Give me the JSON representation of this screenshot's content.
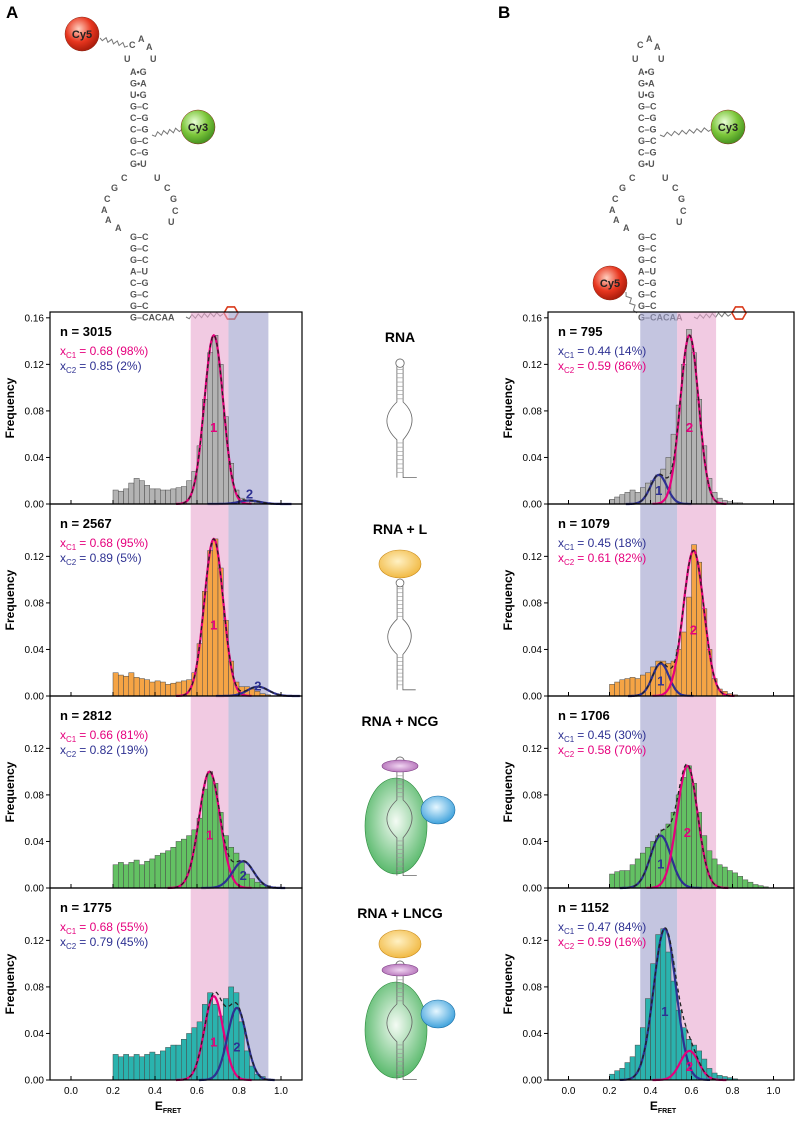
{
  "panel_letters": [
    "A",
    "B"
  ],
  "rna": {
    "dyes": [
      "Cy5",
      "Cy3"
    ],
    "loop": [
      "U",
      "C",
      "A",
      "A",
      "U"
    ],
    "upper_stem": [
      "A•G",
      "G•A",
      "U•G",
      "G–C",
      "C–G",
      "C–G",
      "G–C",
      "C–G",
      "G•U"
    ],
    "internal_left": [
      "C",
      "G",
      "C",
      "A",
      "A",
      "A"
    ],
    "internal_right": [
      "U",
      "C",
      "G",
      "C",
      "U"
    ],
    "lower_stem": [
      "G–C",
      "G–C",
      "G–C",
      "A–U",
      "C–G",
      "G–C",
      "G–C",
      "G–CACAA"
    ]
  },
  "conditions": [
    "RNA",
    "RNA + L",
    "RNA + NCG",
    "RNA + LNCG"
  ],
  "chart_data": [
    {
      "type": "histogram",
      "label": "n = 3015",
      "y_label": "Frequency",
      "color": "#b3b3b3",
      "bins": [
        0.2,
        0.225,
        0.25,
        0.275,
        0.3,
        0.325,
        0.35,
        0.375,
        0.4,
        0.425,
        0.45,
        0.475,
        0.5,
        0.525,
        0.55,
        0.575,
        0.6,
        0.625,
        0.65,
        0.675,
        0.7,
        0.725,
        0.75,
        0.775,
        0.8,
        0.825,
        0.85,
        0.875,
        0.9,
        0.925,
        0.95,
        0.975,
        1.0
      ],
      "values": [
        0.012,
        0.011,
        0.013,
        0.018,
        0.022,
        0.02,
        0.016,
        0.013,
        0.013,
        0.012,
        0.012,
        0.013,
        0.014,
        0.015,
        0.02,
        0.028,
        0.05,
        0.09,
        0.13,
        0.145,
        0.12,
        0.075,
        0.035,
        0.012,
        0.005,
        0.003,
        0.002,
        0.001,
        0.001,
        0,
        0,
        0
      ],
      "xlim": [
        -0.1,
        1.1
      ],
      "ylim": [
        0,
        0.165
      ],
      "yticks": [
        {
          "value": 0,
          "label": "0.00"
        },
        0.04,
        0.08,
        0.12,
        0.16
      ],
      "bands": [
        {
          "range": [
            0.57,
            0.75
          ],
          "color": "#e8a7cf"
        },
        {
          "range": [
            0.75,
            0.94
          ],
          "color": "#9d9ecb"
        }
      ],
      "fit_symbol": "x",
      "fits": [
        {
          "name": "C1",
          "label": "= 0.68 (98%)",
          "center": 0.68,
          "sigma": 0.045,
          "amplitude": 0.145,
          "color": "#e5007d",
          "peak_label": "1"
        },
        {
          "name": "C2",
          "label": "= 0.85  (2%)",
          "center": 0.85,
          "sigma": 0.05,
          "amplitude": 0.003,
          "color": "#2e3192",
          "peak_label": "2"
        }
      ]
    },
    {
      "type": "histogram",
      "label": "n = 2567",
      "y_label": "Frequency",
      "color": "#f5a445",
      "bins": [
        0.2,
        0.225,
        0.25,
        0.275,
        0.3,
        0.325,
        0.35,
        0.375,
        0.4,
        0.425,
        0.45,
        0.475,
        0.5,
        0.525,
        0.55,
        0.575,
        0.6,
        0.625,
        0.65,
        0.675,
        0.7,
        0.725,
        0.75,
        0.775,
        0.8,
        0.825,
        0.85,
        0.875,
        0.9,
        0.925,
        0.95,
        0.975,
        1.0
      ],
      "values": [
        0.02,
        0.018,
        0.017,
        0.02,
        0.016,
        0.015,
        0.014,
        0.012,
        0.013,
        0.012,
        0.01,
        0.011,
        0.012,
        0.013,
        0.014,
        0.02,
        0.045,
        0.09,
        0.125,
        0.135,
        0.11,
        0.065,
        0.03,
        0.012,
        0.008,
        0.008,
        0.006,
        0.004,
        0.002,
        0.001,
        0,
        0
      ],
      "xlim": [
        -0.1,
        1.1
      ],
      "ylim": [
        0,
        0.165
      ],
      "yticks": [
        {
          "value": 0,
          "label": "0.00"
        },
        0.04,
        0.08,
        0.12
      ],
      "bands": [
        {
          "range": [
            0.57,
            0.75
          ],
          "color": "#e8a7cf"
        },
        {
          "range": [
            0.75,
            0.94
          ],
          "color": "#9d9ecb"
        }
      ],
      "fit_symbol": "x",
      "fits": [
        {
          "name": "C1",
          "label": "= 0.68 (95%)",
          "center": 0.68,
          "sigma": 0.045,
          "amplitude": 0.135,
          "color": "#e5007d",
          "peak_label": "1"
        },
        {
          "name": "C2",
          "label": "= 0.89  (5%)",
          "center": 0.89,
          "sigma": 0.05,
          "amplitude": 0.008,
          "color": "#2e3192",
          "peak_label": "2"
        }
      ]
    },
    {
      "type": "histogram",
      "label": "n = 2812",
      "y_label": "Frequency",
      "color": "#63c163",
      "bins": [
        0.2,
        0.225,
        0.25,
        0.275,
        0.3,
        0.325,
        0.35,
        0.375,
        0.4,
        0.425,
        0.45,
        0.475,
        0.5,
        0.525,
        0.55,
        0.575,
        0.6,
        0.625,
        0.65,
        0.675,
        0.7,
        0.725,
        0.75,
        0.775,
        0.8,
        0.825,
        0.85,
        0.875,
        0.9,
        0.925,
        0.95,
        0.975,
        1.0
      ],
      "values": [
        0.02,
        0.022,
        0.02,
        0.022,
        0.024,
        0.02,
        0.023,
        0.025,
        0.028,
        0.03,
        0.032,
        0.035,
        0.04,
        0.042,
        0.045,
        0.05,
        0.06,
        0.085,
        0.1,
        0.09,
        0.065,
        0.045,
        0.035,
        0.03,
        0.022,
        0.012,
        0.008,
        0.005,
        0.003,
        0.002,
        0.001,
        0
      ],
      "xlim": [
        -0.1,
        1.1
      ],
      "ylim": [
        0,
        0.165
      ],
      "yticks": [
        {
          "value": 0,
          "label": "0.00"
        },
        0.04,
        0.08,
        0.12
      ],
      "bands": [
        {
          "range": [
            0.57,
            0.75
          ],
          "color": "#e8a7cf"
        },
        {
          "range": [
            0.75,
            0.94
          ],
          "color": "#9d9ecb"
        }
      ],
      "fit_symbol": "x",
      "fits": [
        {
          "name": "C1",
          "label": "= 0.66 (81%)",
          "center": 0.66,
          "sigma": 0.05,
          "amplitude": 0.1,
          "color": "#e5007d",
          "peak_label": "1"
        },
        {
          "name": "C2",
          "label": "= 0.82 (19%)",
          "center": 0.82,
          "sigma": 0.05,
          "amplitude": 0.023,
          "color": "#2e3192",
          "peak_label": "2"
        }
      ]
    },
    {
      "type": "histogram",
      "label": "n = 1775",
      "y_label": "Frequency",
      "color": "#2ab3ae",
      "bins": [
        0.2,
        0.225,
        0.25,
        0.275,
        0.3,
        0.325,
        0.35,
        0.375,
        0.4,
        0.425,
        0.45,
        0.475,
        0.5,
        0.525,
        0.55,
        0.575,
        0.6,
        0.625,
        0.65,
        0.675,
        0.7,
        0.725,
        0.75,
        0.775,
        0.8,
        0.825,
        0.85,
        0.875,
        0.9,
        0.925,
        0.95,
        0.975,
        1.0
      ],
      "values": [
        0.022,
        0.02,
        0.022,
        0.02,
        0.022,
        0.02,
        0.022,
        0.024,
        0.022,
        0.025,
        0.028,
        0.03,
        0.03,
        0.035,
        0.04,
        0.045,
        0.05,
        0.065,
        0.075,
        0.065,
        0.055,
        0.07,
        0.08,
        0.075,
        0.05,
        0.025,
        0.012,
        0.005,
        0.003,
        0.001,
        0,
        0
      ],
      "xlim": [
        -0.1,
        1.1
      ],
      "ylim": [
        0,
        0.165
      ],
      "yticks": [
        {
          "value": 0,
          "label": "0.00"
        },
        0.04,
        0.08,
        0.12
      ],
      "xticks": [
        {
          "value": 0,
          "label": "0.0"
        },
        0.2,
        0.4,
        0.6,
        0.8,
        {
          "value": 1,
          "label": "1.0"
        }
      ],
      "x_label": "E",
      "x_label_sub": "FRET",
      "bands": [
        {
          "range": [
            0.57,
            0.75
          ],
          "color": "#e8a7cf"
        },
        {
          "range": [
            0.75,
            0.94
          ],
          "color": "#9d9ecb"
        }
      ],
      "fit_symbol": "x",
      "fits": [
        {
          "name": "C1",
          "label": "= 0.68 (55%)",
          "center": 0.68,
          "sigma": 0.045,
          "amplitude": 0.072,
          "color": "#e5007d",
          "peak_label": "1"
        },
        {
          "name": "C2",
          "label": "= 0.79 (45%)",
          "center": 0.79,
          "sigma": 0.045,
          "amplitude": 0.062,
          "color": "#2e3192",
          "peak_label": "2"
        }
      ]
    },
    {
      "type": "histogram",
      "label": "n = 795",
      "y_label": "Frequency",
      "color": "#b3b3b3",
      "bins": [
        0.2,
        0.225,
        0.25,
        0.275,
        0.3,
        0.325,
        0.35,
        0.375,
        0.4,
        0.425,
        0.45,
        0.475,
        0.5,
        0.525,
        0.55,
        0.575,
        0.6,
        0.625,
        0.65,
        0.675,
        0.7,
        0.725,
        0.75,
        0.775,
        0.8,
        0.825,
        0.85,
        0.875,
        0.9,
        0.925,
        0.95,
        0.975,
        1.0
      ],
      "values": [
        0.004,
        0.006,
        0.008,
        0.01,
        0.012,
        0.01,
        0.014,
        0.018,
        0.02,
        0.025,
        0.03,
        0.04,
        0.06,
        0.085,
        0.12,
        0.15,
        0.13,
        0.09,
        0.05,
        0.022,
        0.01,
        0.005,
        0.003,
        0.002,
        0.001,
        0.001,
        0,
        0,
        0,
        0,
        0,
        0
      ],
      "xlim": [
        -0.1,
        1.1
      ],
      "ylim": [
        0,
        0.165
      ],
      "yticks": [
        {
          "value": 0,
          "label": "0.00"
        },
        0.04,
        0.08,
        0.12,
        0.16
      ],
      "bands": [
        {
          "range": [
            0.35,
            0.53
          ],
          "color": "#9d9ecb"
        },
        {
          "range": [
            0.53,
            0.72
          ],
          "color": "#e8a7cf"
        }
      ],
      "fit_symbol": "x",
      "fits": [
        {
          "name": "C1",
          "label": "= 0.44 (14%)",
          "center": 0.44,
          "sigma": 0.04,
          "amplitude": 0.025,
          "color": "#2e3192",
          "peak_label": "1"
        },
        {
          "name": "C2",
          "label": "= 0.59 (86%)",
          "center": 0.59,
          "sigma": 0.045,
          "amplitude": 0.145,
          "color": "#e5007d",
          "peak_label": "2"
        }
      ]
    },
    {
      "type": "histogram",
      "label": "n = 1079",
      "y_label": "Frequency",
      "color": "#f5a445",
      "bins": [
        0.2,
        0.225,
        0.25,
        0.275,
        0.3,
        0.325,
        0.35,
        0.375,
        0.4,
        0.425,
        0.45,
        0.475,
        0.5,
        0.525,
        0.55,
        0.575,
        0.6,
        0.625,
        0.65,
        0.675,
        0.7,
        0.725,
        0.75,
        0.775,
        0.8,
        0.825,
        0.85,
        0.875,
        0.9,
        0.925,
        0.95,
        0.975,
        1.0
      ],
      "values": [
        0.01,
        0.012,
        0.014,
        0.015,
        0.016,
        0.015,
        0.018,
        0.02,
        0.025,
        0.03,
        0.03,
        0.028,
        0.03,
        0.04,
        0.055,
        0.085,
        0.13,
        0.115,
        0.075,
        0.04,
        0.015,
        0.006,
        0.004,
        0.002,
        0.001,
        0,
        0,
        0,
        0,
        0,
        0,
        0
      ],
      "xlim": [
        -0.1,
        1.1
      ],
      "ylim": [
        0,
        0.165
      ],
      "yticks": [
        {
          "value": 0,
          "label": "0.00"
        },
        0.04,
        0.08,
        0.12
      ],
      "bands": [
        {
          "range": [
            0.35,
            0.53
          ],
          "color": "#9d9ecb"
        },
        {
          "range": [
            0.53,
            0.72
          ],
          "color": "#e8a7cf"
        }
      ],
      "fit_symbol": "x",
      "fits": [
        {
          "name": "C1",
          "label": "= 0.45 (18%)",
          "center": 0.45,
          "sigma": 0.04,
          "amplitude": 0.028,
          "color": "#2e3192",
          "peak_label": "1"
        },
        {
          "name": "C2",
          "label": "= 0.61 (82%)",
          "center": 0.61,
          "sigma": 0.05,
          "amplitude": 0.125,
          "color": "#e5007d",
          "peak_label": "2"
        }
      ]
    },
    {
      "type": "histogram",
      "label": "n = 1706",
      "y_label": "Frequency",
      "color": "#63c163",
      "bins": [
        0.2,
        0.225,
        0.25,
        0.275,
        0.3,
        0.325,
        0.35,
        0.375,
        0.4,
        0.425,
        0.45,
        0.475,
        0.5,
        0.525,
        0.55,
        0.575,
        0.6,
        0.625,
        0.65,
        0.675,
        0.7,
        0.725,
        0.75,
        0.775,
        0.8,
        0.825,
        0.85,
        0.875,
        0.9,
        0.925,
        0.95,
        0.975,
        1.0
      ],
      "values": [
        0.012,
        0.014,
        0.015,
        0.015,
        0.02,
        0.025,
        0.03,
        0.035,
        0.04,
        0.045,
        0.05,
        0.055,
        0.065,
        0.08,
        0.095,
        0.105,
        0.09,
        0.065,
        0.045,
        0.032,
        0.025,
        0.02,
        0.018,
        0.015,
        0.013,
        0.01,
        0.007,
        0.005,
        0.003,
        0.002,
        0.001,
        0
      ],
      "xlim": [
        -0.1,
        1.1
      ],
      "ylim": [
        0,
        0.165
      ],
      "yticks": [
        {
          "value": 0,
          "label": "0.00"
        },
        0.04,
        0.08,
        0.12
      ],
      "bands": [
        {
          "range": [
            0.35,
            0.53
          ],
          "color": "#9d9ecb"
        },
        {
          "range": [
            0.53,
            0.72
          ],
          "color": "#e8a7cf"
        }
      ],
      "fit_symbol": "x",
      "fits": [
        {
          "name": "C1",
          "label": "= 0.45 (30%)",
          "center": 0.45,
          "sigma": 0.05,
          "amplitude": 0.045,
          "color": "#2e3192",
          "peak_label": "1"
        },
        {
          "name": "C2",
          "label": "= 0.58 (70%)",
          "center": 0.58,
          "sigma": 0.05,
          "amplitude": 0.105,
          "color": "#e5007d",
          "peak_label": "2"
        }
      ]
    },
    {
      "type": "histogram",
      "label": "n = 1152",
      "y_label": "Frequency",
      "color": "#2ab3ae",
      "bins": [
        0.2,
        0.225,
        0.25,
        0.275,
        0.3,
        0.325,
        0.35,
        0.375,
        0.4,
        0.425,
        0.45,
        0.475,
        0.5,
        0.525,
        0.55,
        0.575,
        0.6,
        0.625,
        0.65,
        0.675,
        0.7,
        0.725,
        0.75,
        0.775,
        0.8,
        0.825,
        0.85,
        0.875,
        0.9,
        0.925,
        0.95,
        0.975,
        1.0
      ],
      "values": [
        0.005,
        0.008,
        0.01,
        0.015,
        0.02,
        0.03,
        0.045,
        0.07,
        0.1,
        0.125,
        0.13,
        0.11,
        0.085,
        0.06,
        0.045,
        0.035,
        0.03,
        0.025,
        0.018,
        0.01,
        0.006,
        0.004,
        0.003,
        0.002,
        0.001,
        0,
        0,
        0,
        0,
        0,
        0,
        0
      ],
      "xlim": [
        -0.1,
        1.1
      ],
      "ylim": [
        0,
        0.165
      ],
      "yticks": [
        {
          "value": 0,
          "label": "0.00"
        },
        0.04,
        0.08,
        0.12
      ],
      "xticks": [
        {
          "value": 0,
          "label": "0.0"
        },
        0.2,
        0.4,
        0.6,
        0.8,
        {
          "value": 1,
          "label": "1.0"
        }
      ],
      "x_label": "E",
      "x_label_sub": "FRET",
      "bands": [
        {
          "range": [
            0.35,
            0.53
          ],
          "color": "#9d9ecb"
        },
        {
          "range": [
            0.53,
            0.72
          ],
          "color": "#e8a7cf"
        }
      ],
      "fit_symbol": "x",
      "fits": [
        {
          "name": "C1",
          "label": "= 0.47 (84%)",
          "center": 0.47,
          "sigma": 0.055,
          "amplitude": 0.13,
          "color": "#2e3192",
          "peak_label": "1"
        },
        {
          "name": "C2",
          "label": "= 0.59 (16%)",
          "center": 0.59,
          "sigma": 0.045,
          "amplitude": 0.025,
          "color": "#e5007d",
          "peak_label": "2"
        }
      ]
    }
  ]
}
